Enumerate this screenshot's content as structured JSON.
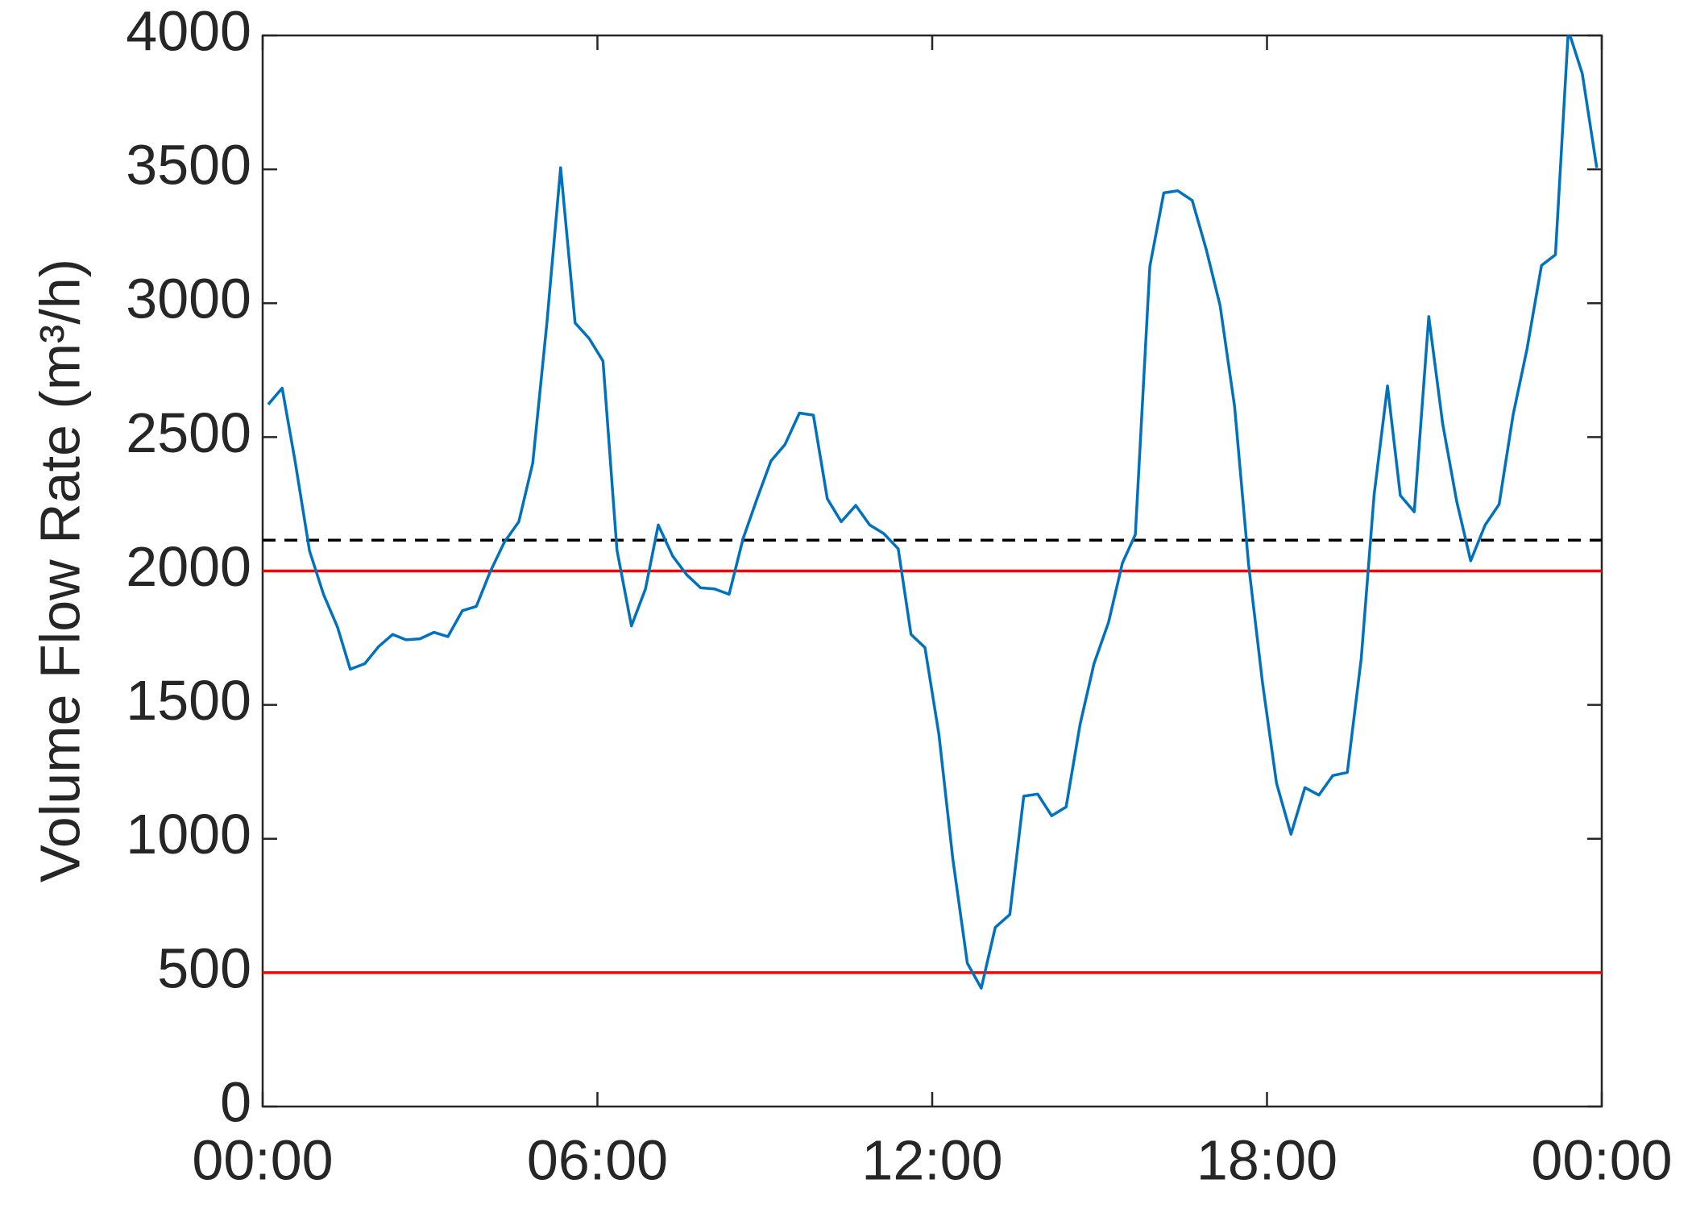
{
  "chart_data": {
    "type": "line",
    "ylabel": "Volume Flow Rate (m³/h)",
    "x": [
      0.1,
      0.35,
      0.58,
      0.84,
      1.09,
      1.34,
      1.57,
      1.83,
      2.08,
      2.33,
      2.57,
      2.82,
      3.07,
      3.32,
      3.58,
      3.83,
      4.08,
      4.33,
      4.59,
      4.84,
      5.09,
      5.34,
      5.6,
      5.85,
      6.1,
      6.35,
      6.61,
      6.86,
      7.09,
      7.35,
      7.6,
      7.85,
      8.1,
      8.36,
      8.61,
      8.86,
      9.11,
      9.36,
      9.62,
      9.87,
      10.12,
      10.37,
      10.63,
      10.88,
      11.13,
      11.39,
      11.62,
      11.87,
      12.12,
      12.37,
      12.63,
      12.88,
      13.13,
      13.39,
      13.64,
      13.89,
      14.14,
      14.4,
      14.65,
      14.9,
      15.16,
      15.41,
      15.64,
      15.9,
      16.15,
      16.4,
      16.66,
      16.91,
      17.16,
      17.42,
      17.67,
      17.92,
      18.17,
      18.43,
      18.68,
      18.93,
      19.18,
      19.44,
      19.69,
      19.92,
      20.16,
      20.39,
      20.64,
      20.9,
      21.15,
      21.4,
      21.65,
      21.91,
      22.16,
      22.41,
      22.66,
      22.92,
      23.17,
      23.4,
      23.65,
      23.91
    ],
    "series": [
      {
        "color": "#0072bd",
        "values": [
          2622,
          2683,
          2411,
          2075,
          1913,
          1791,
          1633,
          1654,
          1718,
          1763,
          1743,
          1747,
          1771,
          1755,
          1852,
          1868,
          1998,
          2107,
          2184,
          2403,
          2918,
          3506,
          2926,
          2869,
          2784,
          2079,
          1795,
          1933,
          2172,
          2055,
          1986,
          1937,
          1933,
          1913,
          2120,
          2270,
          2411,
          2472,
          2590,
          2582,
          2270,
          2184,
          2245,
          2172,
          2140,
          2083,
          1763,
          1714,
          1390,
          924,
          535,
          442,
          669,
          717,
          1159,
          1167,
          1086,
          1119,
          1427,
          1654,
          1808,
          2030,
          2136,
          3137,
          3412,
          3420,
          3384,
          3202,
          2991,
          2614,
          2026,
          1581,
          1208,
          1017,
          1191,
          1163,
          1236,
          1248,
          1674,
          2286,
          2691,
          2282,
          2221,
          2950,
          2549,
          2261,
          2038,
          2172,
          2249,
          2582,
          2829,
          3141,
          3181,
          4020,
          3858,
          3506
        ]
      }
    ],
    "hlines": [
      {
        "value": 2000,
        "color": "#ff0000",
        "dashed": false
      },
      {
        "value": 500,
        "color": "#ff0000",
        "dashed": false
      },
      {
        "value": 2115,
        "color": "#000000",
        "dashed": true
      }
    ],
    "xlim": [
      0,
      24
    ],
    "xticks": [
      {
        "value": 0,
        "label": "00:00"
      },
      {
        "value": 6,
        "label": "06:00"
      },
      {
        "value": 12,
        "label": "12:00"
      },
      {
        "value": 18,
        "label": "18:00"
      },
      {
        "value": 24,
        "label": "00:00"
      }
    ],
    "ylim": [
      0,
      4000
    ],
    "yticks": [
      0,
      500,
      1000,
      1500,
      2000,
      2500,
      3000,
      3500,
      4000
    ],
    "grid": false
  }
}
